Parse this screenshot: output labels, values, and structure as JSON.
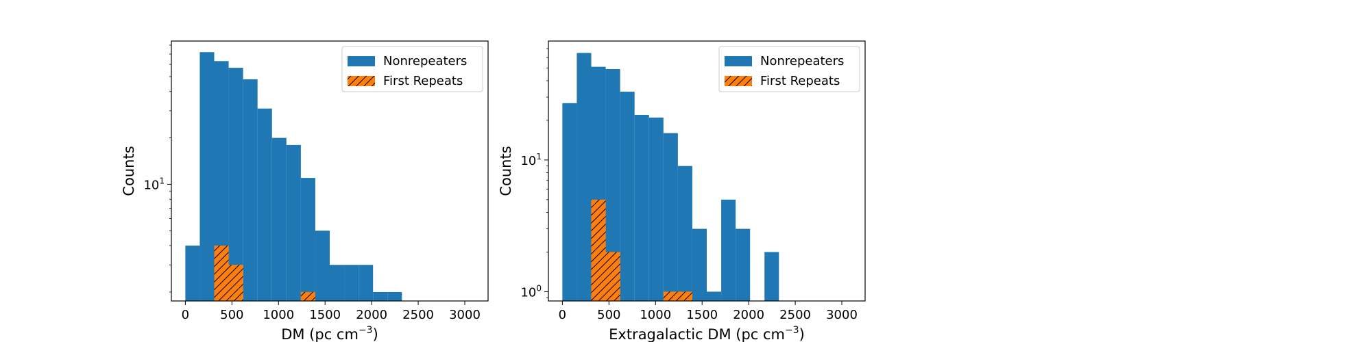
{
  "chart_data": [
    {
      "type": "bar",
      "subtype": "histogram",
      "xlabel": "DM (pc cm",
      "xlabel_sup": "−3",
      "xlabel_close": ")",
      "ylabel": "Counts",
      "yscale": "log",
      "ylim": [
        1.75,
        85
      ],
      "xlim": [
        -150,
        3250
      ],
      "xticks": [
        0,
        500,
        1000,
        1500,
        2000,
        2500,
        3000
      ],
      "yticks": [
        {
          "value": 10,
          "base": "10",
          "exp": "1"
        }
      ],
      "bin_edges": [
        0,
        155,
        310,
        465,
        620,
        775,
        930,
        1085,
        1240,
        1395,
        1550,
        1705,
        1860,
        2015,
        2170,
        2325
      ],
      "legend_position": "top-right",
      "series": [
        {
          "name": "Nonrepeaters",
          "color": "#1f77b4",
          "hatch": false,
          "values": [
            4,
            72,
            63,
            57,
            48,
            31,
            20,
            18,
            11,
            5,
            3,
            3,
            3,
            2,
            2
          ]
        },
        {
          "name": "First Repeats",
          "color": "#ff7f0e",
          "hatch": true,
          "values": [
            0,
            0,
            4,
            3,
            0,
            0,
            0,
            0,
            2,
            0,
            0,
            0,
            0,
            0,
            0
          ]
        }
      ]
    },
    {
      "type": "bar",
      "subtype": "histogram",
      "xlabel": "Extragalactic DM (pc cm",
      "xlabel_sup": "−3",
      "xlabel_close": ")",
      "ylabel": "Counts",
      "yscale": "log",
      "ylim": [
        0.85,
        80
      ],
      "xlim": [
        -150,
        3250
      ],
      "xticks": [
        0,
        500,
        1000,
        1500,
        2000,
        2500,
        3000
      ],
      "yticks": [
        {
          "value": 1,
          "base": "10",
          "exp": "0"
        },
        {
          "value": 10,
          "base": "10",
          "exp": "1"
        }
      ],
      "bin_edges": [
        0,
        155,
        310,
        465,
        620,
        775,
        930,
        1085,
        1240,
        1395,
        1550,
        1705,
        1860,
        2015,
        2170,
        2325
      ],
      "legend_position": "top-right",
      "series": [
        {
          "name": "Nonrepeaters",
          "color": "#1f77b4",
          "hatch": false,
          "values": [
            27,
            65,
            51,
            49,
            33,
            22,
            21,
            16,
            9,
            3,
            1,
            5,
            3,
            0,
            2
          ]
        },
        {
          "name": "First Repeats",
          "color": "#ff7f0e",
          "hatch": true,
          "values": [
            0,
            0,
            5,
            2,
            0,
            0,
            0,
            1,
            1,
            0,
            0,
            0,
            0,
            0,
            0
          ]
        }
      ]
    }
  ]
}
